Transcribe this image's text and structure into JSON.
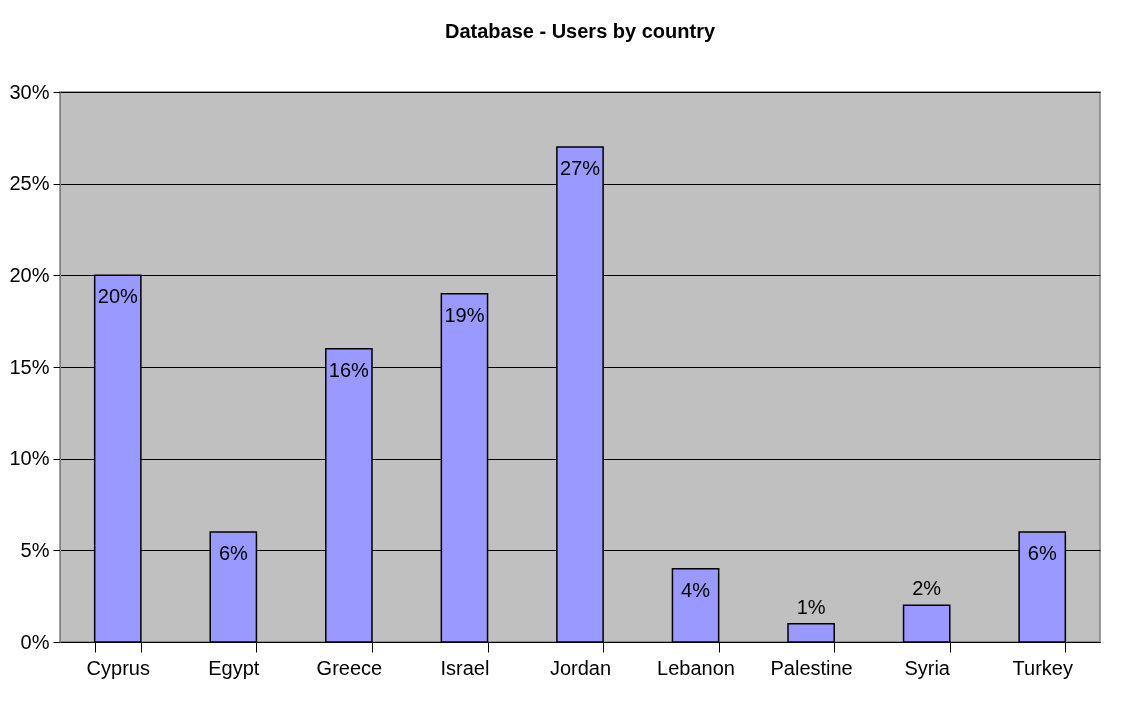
{
  "chart_data": {
    "type": "bar",
    "title": "Database - Users by country",
    "categories": [
      "Cyprus",
      "Egypt",
      "Greece",
      "Israel",
      "Jordan",
      "Lebanon",
      "Palestine",
      "Syria",
      "Turkey"
    ],
    "values": [
      20,
      6,
      16,
      19,
      27,
      4,
      1,
      2,
      6
    ],
    "color": "#9999ff",
    "value_labels": [
      "20%",
      "6%",
      "16%",
      "19%",
      "27%",
      "4%",
      "1%",
      "2%",
      "6%"
    ],
    "ylim": [
      0,
      30
    ],
    "yticks": [
      {
        "value": 0,
        "label": "0%"
      },
      {
        "value": 5,
        "label": "5%"
      },
      {
        "value": 10,
        "label": "10%"
      },
      {
        "value": 15,
        "label": "15%"
      },
      {
        "value": 20,
        "label": "20%"
      },
      {
        "value": 25,
        "label": "25%"
      },
      {
        "value": 30,
        "label": "30%"
      }
    ],
    "grid": "y"
  }
}
